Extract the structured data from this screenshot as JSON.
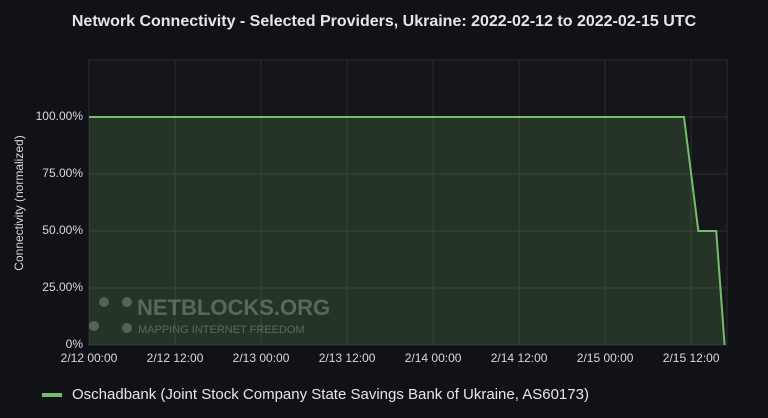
{
  "chart_data": {
    "type": "area",
    "title": "Network Connectivity - Selected Providers, Ukraine: 2022-02-12 to 2022-02-15 UTC",
    "y_label": "Connectivity (normalized)",
    "watermark": {
      "brand": "NETBLOCKS.ORG",
      "tagline": "MAPPING INTERNET FREEDOM"
    },
    "x": [
      "2022-02-12 00:00",
      "2022-02-15 11:00",
      "2022-02-15 13:00",
      "2022-02-15 15:30",
      "2022-02-15 16:40"
    ],
    "series": [
      {
        "name": "Oschadbank (Joint Stock Company State Savings Bank of Ukraine, AS60173)",
        "color": "#73bf69",
        "values": [
          100,
          100,
          50,
          50,
          0
        ]
      }
    ],
    "xlim": [
      "2022-02-12 00:00",
      "2022-02-15 17:00"
    ],
    "xticks": [
      {
        "value": "2022-02-12 00:00",
        "label": "2/12 00:00"
      },
      {
        "value": "2022-02-12 12:00",
        "label": "2/12 12:00"
      },
      {
        "value": "2022-02-13 00:00",
        "label": "2/13 00:00"
      },
      {
        "value": "2022-02-13 12:00",
        "label": "2/13 12:00"
      },
      {
        "value": "2022-02-14 00:00",
        "label": "2/14 00:00"
      },
      {
        "value": "2022-02-14 12:00",
        "label": "2/14 12:00"
      },
      {
        "value": "2022-02-15 00:00",
        "label": "2/15 00:00"
      },
      {
        "value": "2022-02-15 12:00",
        "label": "2/15 12:00"
      }
    ],
    "ylim": [
      0,
      125
    ],
    "yticks": [
      {
        "value": 0,
        "label": "0%"
      },
      {
        "value": 25,
        "label": "25.00%"
      },
      {
        "value": 50,
        "label": "50.00%"
      },
      {
        "value": 75,
        "label": "75.00%"
      },
      {
        "value": 100,
        "label": "100.00%"
      }
    ],
    "grid": true,
    "legend": "bottom"
  }
}
